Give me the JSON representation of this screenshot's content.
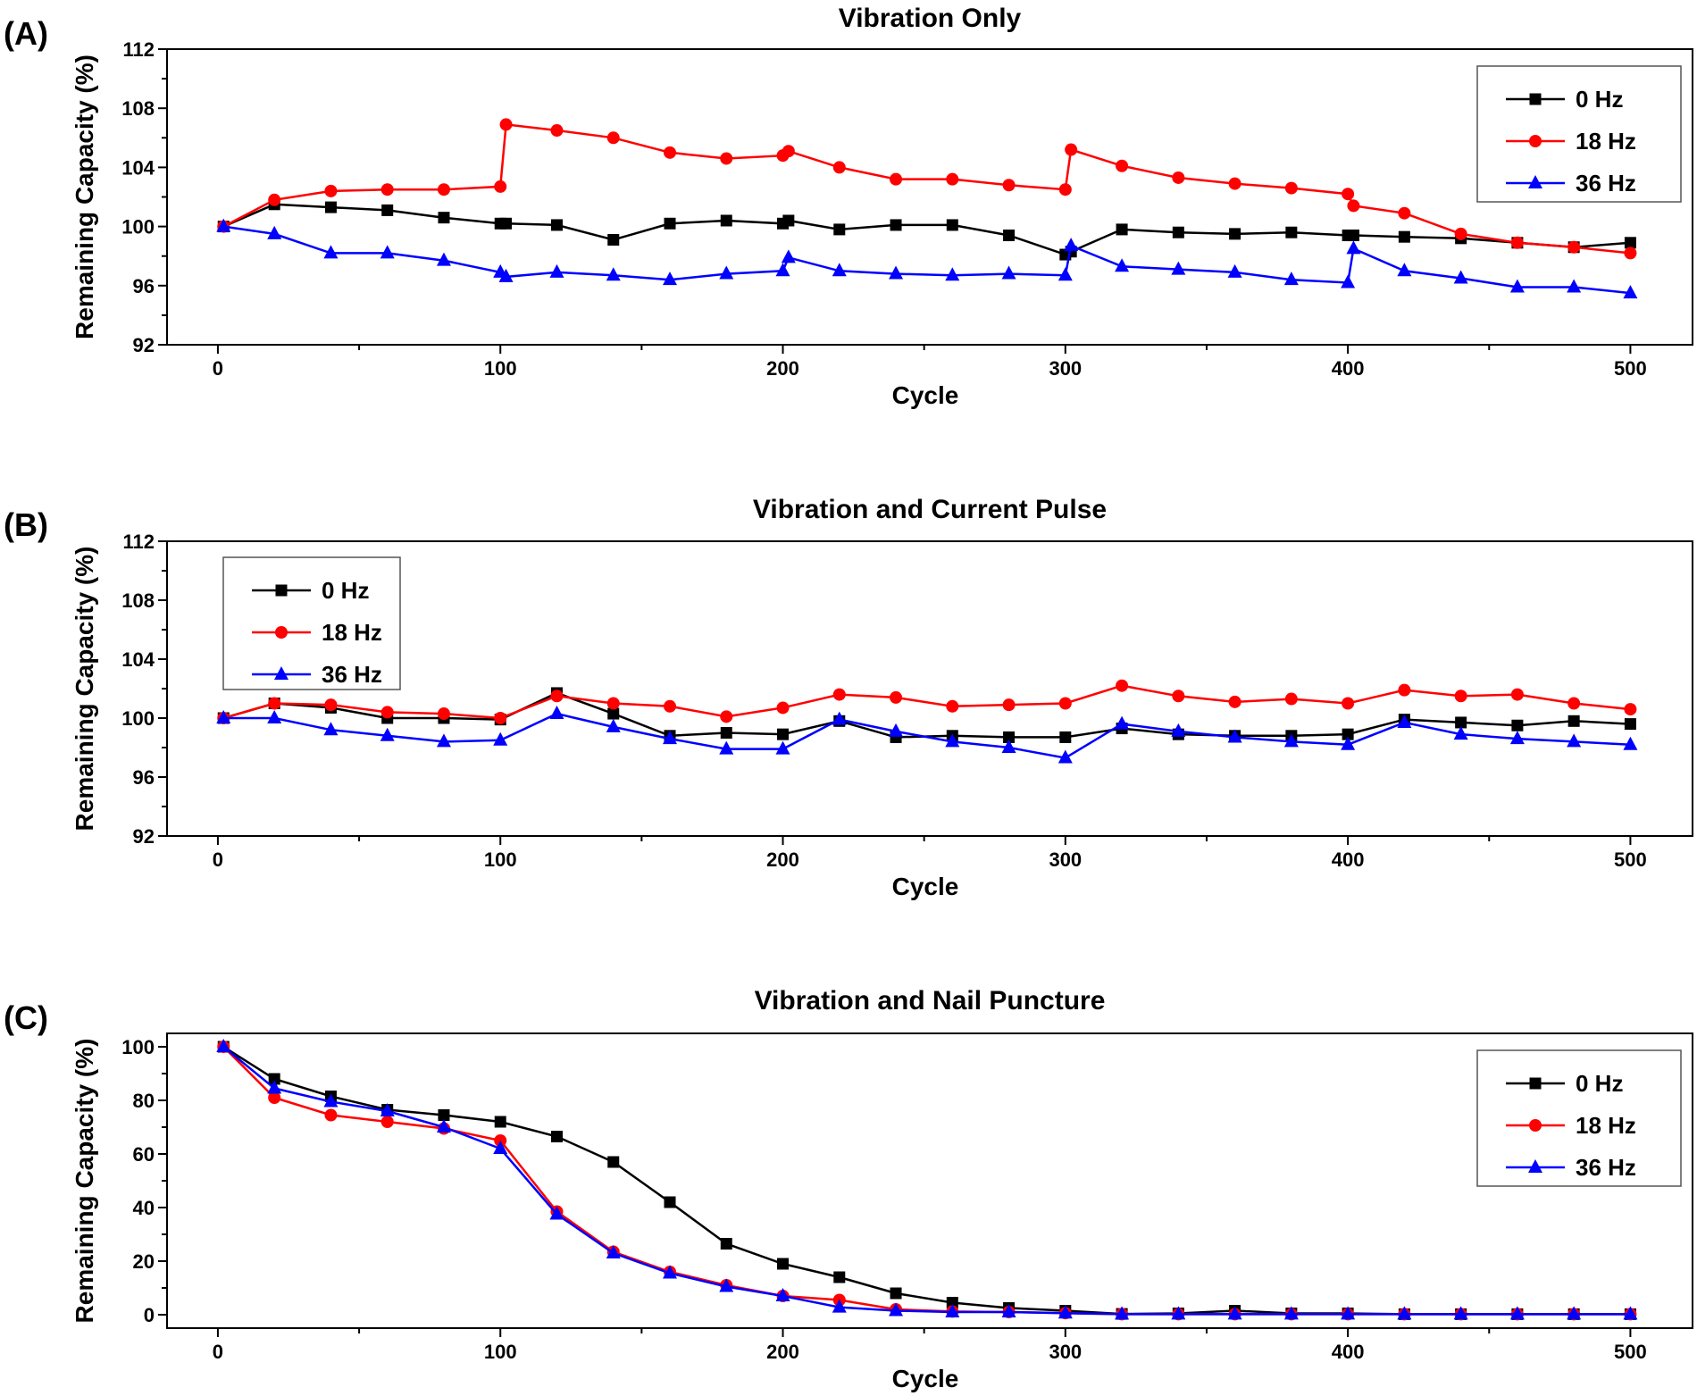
{
  "chart_data": [
    {
      "type": "line",
      "panel": "(A)",
      "title": "Vibration Only",
      "xlabel": "Cycle",
      "ylabel": "Remaining Capacity (%)",
      "xlim": [
        -18,
        522
      ],
      "ylim": [
        92,
        112
      ],
      "xticks": [
        0,
        100,
        200,
        300,
        400,
        500
      ],
      "yticks": [
        92,
        96,
        100,
        104,
        108,
        112
      ],
      "legend_position": "top-right",
      "series": [
        {
          "name": "0 Hz",
          "color": "#000000",
          "marker": "square",
          "x": [
            2,
            20,
            40,
            60,
            80,
            100,
            102,
            120,
            140,
            160,
            180,
            200,
            202,
            220,
            240,
            260,
            280,
            300,
            302,
            320,
            340,
            360,
            380,
            400,
            402,
            420,
            440,
            460,
            480,
            500
          ],
          "y": [
            100.0,
            101.5,
            101.3,
            101.1,
            100.6,
            100.2,
            100.2,
            100.1,
            99.1,
            100.2,
            100.4,
            100.2,
            100.4,
            99.8,
            100.1,
            100.1,
            99.4,
            98.1,
            98.3,
            99.8,
            99.6,
            99.5,
            99.6,
            99.4,
            99.4,
            99.3,
            99.2,
            98.9,
            98.6,
            98.9
          ]
        },
        {
          "name": "18 Hz",
          "color": "#ff0000",
          "marker": "circle",
          "x": [
            2,
            20,
            40,
            60,
            80,
            100,
            102,
            120,
            140,
            160,
            180,
            200,
            202,
            220,
            240,
            260,
            280,
            300,
            302,
            320,
            340,
            360,
            380,
            400,
            402,
            420,
            440,
            460,
            480,
            500
          ],
          "y": [
            100.0,
            101.8,
            102.4,
            102.5,
            102.5,
            102.7,
            106.9,
            106.5,
            106.0,
            105.0,
            104.6,
            104.8,
            105.1,
            104.0,
            103.2,
            103.2,
            102.8,
            102.5,
            105.2,
            104.1,
            103.3,
            102.9,
            102.6,
            102.2,
            101.4,
            100.9,
            99.5,
            98.9,
            98.6,
            98.2
          ]
        },
        {
          "name": "36 Hz",
          "color": "#0000ff",
          "marker": "triangle",
          "x": [
            2,
            20,
            40,
            60,
            80,
            100,
            102,
            120,
            140,
            160,
            180,
            200,
            202,
            220,
            240,
            260,
            280,
            300,
            302,
            320,
            340,
            360,
            380,
            400,
            402,
            420,
            440,
            460,
            480,
            500
          ],
          "y": [
            100.0,
            99.5,
            98.2,
            98.2,
            97.7,
            96.9,
            96.6,
            96.9,
            96.7,
            96.4,
            96.8,
            97.0,
            97.9,
            97.0,
            96.8,
            96.7,
            96.8,
            96.7,
            98.7,
            97.3,
            97.1,
            96.9,
            96.4,
            96.2,
            98.5,
            97.0,
            96.5,
            95.9,
            95.9,
            95.5
          ]
        }
      ]
    },
    {
      "type": "line",
      "panel": "(B)",
      "title": "Vibration and Current Pulse",
      "xlabel": "Cycle",
      "ylabel": "Remaining Capacity (%)",
      "xlim": [
        -18,
        522
      ],
      "ylim": [
        92,
        112
      ],
      "xticks": [
        0,
        100,
        200,
        300,
        400,
        500
      ],
      "yticks": [
        92,
        96,
        100,
        104,
        108,
        112
      ],
      "legend_position": "top-left",
      "series": [
        {
          "name": "0 Hz",
          "color": "#000000",
          "marker": "square",
          "x": [
            2,
            20,
            40,
            60,
            80,
            100,
            120,
            140,
            160,
            180,
            200,
            220,
            240,
            260,
            280,
            300,
            320,
            340,
            360,
            380,
            400,
            420,
            440,
            460,
            480,
            500
          ],
          "y": [
            100.0,
            101.0,
            100.7,
            100.0,
            100.0,
            99.9,
            101.7,
            100.3,
            98.8,
            99.0,
            98.9,
            99.8,
            98.7,
            98.8,
            98.7,
            98.7,
            99.3,
            98.9,
            98.8,
            98.8,
            98.9,
            99.9,
            99.7,
            99.5,
            99.8,
            99.6
          ]
        },
        {
          "name": "18 Hz",
          "color": "#ff0000",
          "marker": "circle",
          "x": [
            2,
            20,
            40,
            60,
            80,
            100,
            120,
            140,
            160,
            180,
            200,
            220,
            240,
            260,
            280,
            300,
            320,
            340,
            360,
            380,
            400,
            420,
            440,
            460,
            480,
            500
          ],
          "y": [
            100.0,
            101.0,
            100.9,
            100.4,
            100.3,
            100.0,
            101.5,
            101.0,
            100.8,
            100.1,
            100.7,
            101.6,
            101.4,
            100.8,
            100.9,
            101.0,
            102.2,
            101.5,
            101.1,
            101.3,
            101.0,
            101.9,
            101.5,
            101.6,
            101.0,
            100.6
          ]
        },
        {
          "name": "36 Hz",
          "color": "#0000ff",
          "marker": "triangle",
          "x": [
            2,
            20,
            40,
            60,
            80,
            100,
            120,
            140,
            160,
            180,
            200,
            220,
            240,
            260,
            280,
            300,
            320,
            340,
            360,
            380,
            400,
            420,
            440,
            460,
            480,
            500
          ],
          "y": [
            100.0,
            100.0,
            99.2,
            98.8,
            98.4,
            98.5,
            100.3,
            99.4,
            98.6,
            97.9,
            97.9,
            99.9,
            99.1,
            98.4,
            98.0,
            97.3,
            99.6,
            99.1,
            98.7,
            98.4,
            98.2,
            99.7,
            98.9,
            98.6,
            98.4,
            98.2
          ]
        }
      ]
    },
    {
      "type": "line",
      "panel": "(C)",
      "title": "Vibration and Nail Puncture",
      "xlabel": "Cycle",
      "ylabel": "Remaining Capacity (%)",
      "xlim": [
        -18,
        522
      ],
      "ylim": [
        -5,
        105
      ],
      "xticks": [
        0,
        100,
        200,
        300,
        400,
        500
      ],
      "yticks": [
        0,
        20,
        40,
        60,
        80,
        100
      ],
      "legend_position": "top-right",
      "series": [
        {
          "name": "0 Hz",
          "color": "#000000",
          "marker": "square",
          "x": [
            2,
            20,
            40,
            60,
            80,
            100,
            120,
            140,
            160,
            180,
            200,
            220,
            240,
            260,
            280,
            300,
            320,
            340,
            360,
            380,
            400,
            420,
            440,
            460,
            480,
            500
          ],
          "y": [
            100,
            88,
            81.5,
            76.5,
            74.5,
            72,
            66.5,
            57,
            42,
            26.5,
            19,
            14,
            8,
            4.5,
            2.5,
            1.5,
            0.3,
            0.5,
            1.5,
            0.5,
            0.5,
            0.2,
            0.2,
            0.2,
            0.2,
            0.2
          ]
        },
        {
          "name": "18 Hz",
          "color": "#ff0000",
          "marker": "circle",
          "x": [
            2,
            20,
            40,
            60,
            80,
            100,
            120,
            140,
            160,
            180,
            200,
            220,
            240,
            260,
            280,
            300,
            320,
            340,
            360,
            380,
            400,
            420,
            440,
            460,
            480,
            500
          ],
          "y": [
            100,
            81,
            74.5,
            72,
            69.5,
            65,
            38.5,
            23.5,
            16,
            11,
            7,
            5.5,
            2,
            1.2,
            1,
            0.6,
            0.2,
            0.2,
            0.2,
            0.2,
            0.2,
            0.2,
            0.2,
            0.2,
            0.2,
            0.2
          ]
        },
        {
          "name": "36 Hz",
          "color": "#0000ff",
          "marker": "triangle",
          "x": [
            2,
            20,
            40,
            60,
            80,
            100,
            120,
            140,
            160,
            180,
            200,
            220,
            240,
            260,
            280,
            300,
            320,
            340,
            360,
            380,
            400,
            420,
            440,
            460,
            480,
            500
          ],
          "y": [
            100,
            84.5,
            79.5,
            76,
            70,
            62,
            37.5,
            23,
            15.5,
            10.5,
            7,
            2.8,
            1.5,
            1,
            1,
            0.6,
            0.2,
            0.2,
            0.2,
            0.2,
            0.2,
            0.2,
            0.2,
            0.2,
            0.2,
            0.2
          ]
        }
      ]
    }
  ]
}
